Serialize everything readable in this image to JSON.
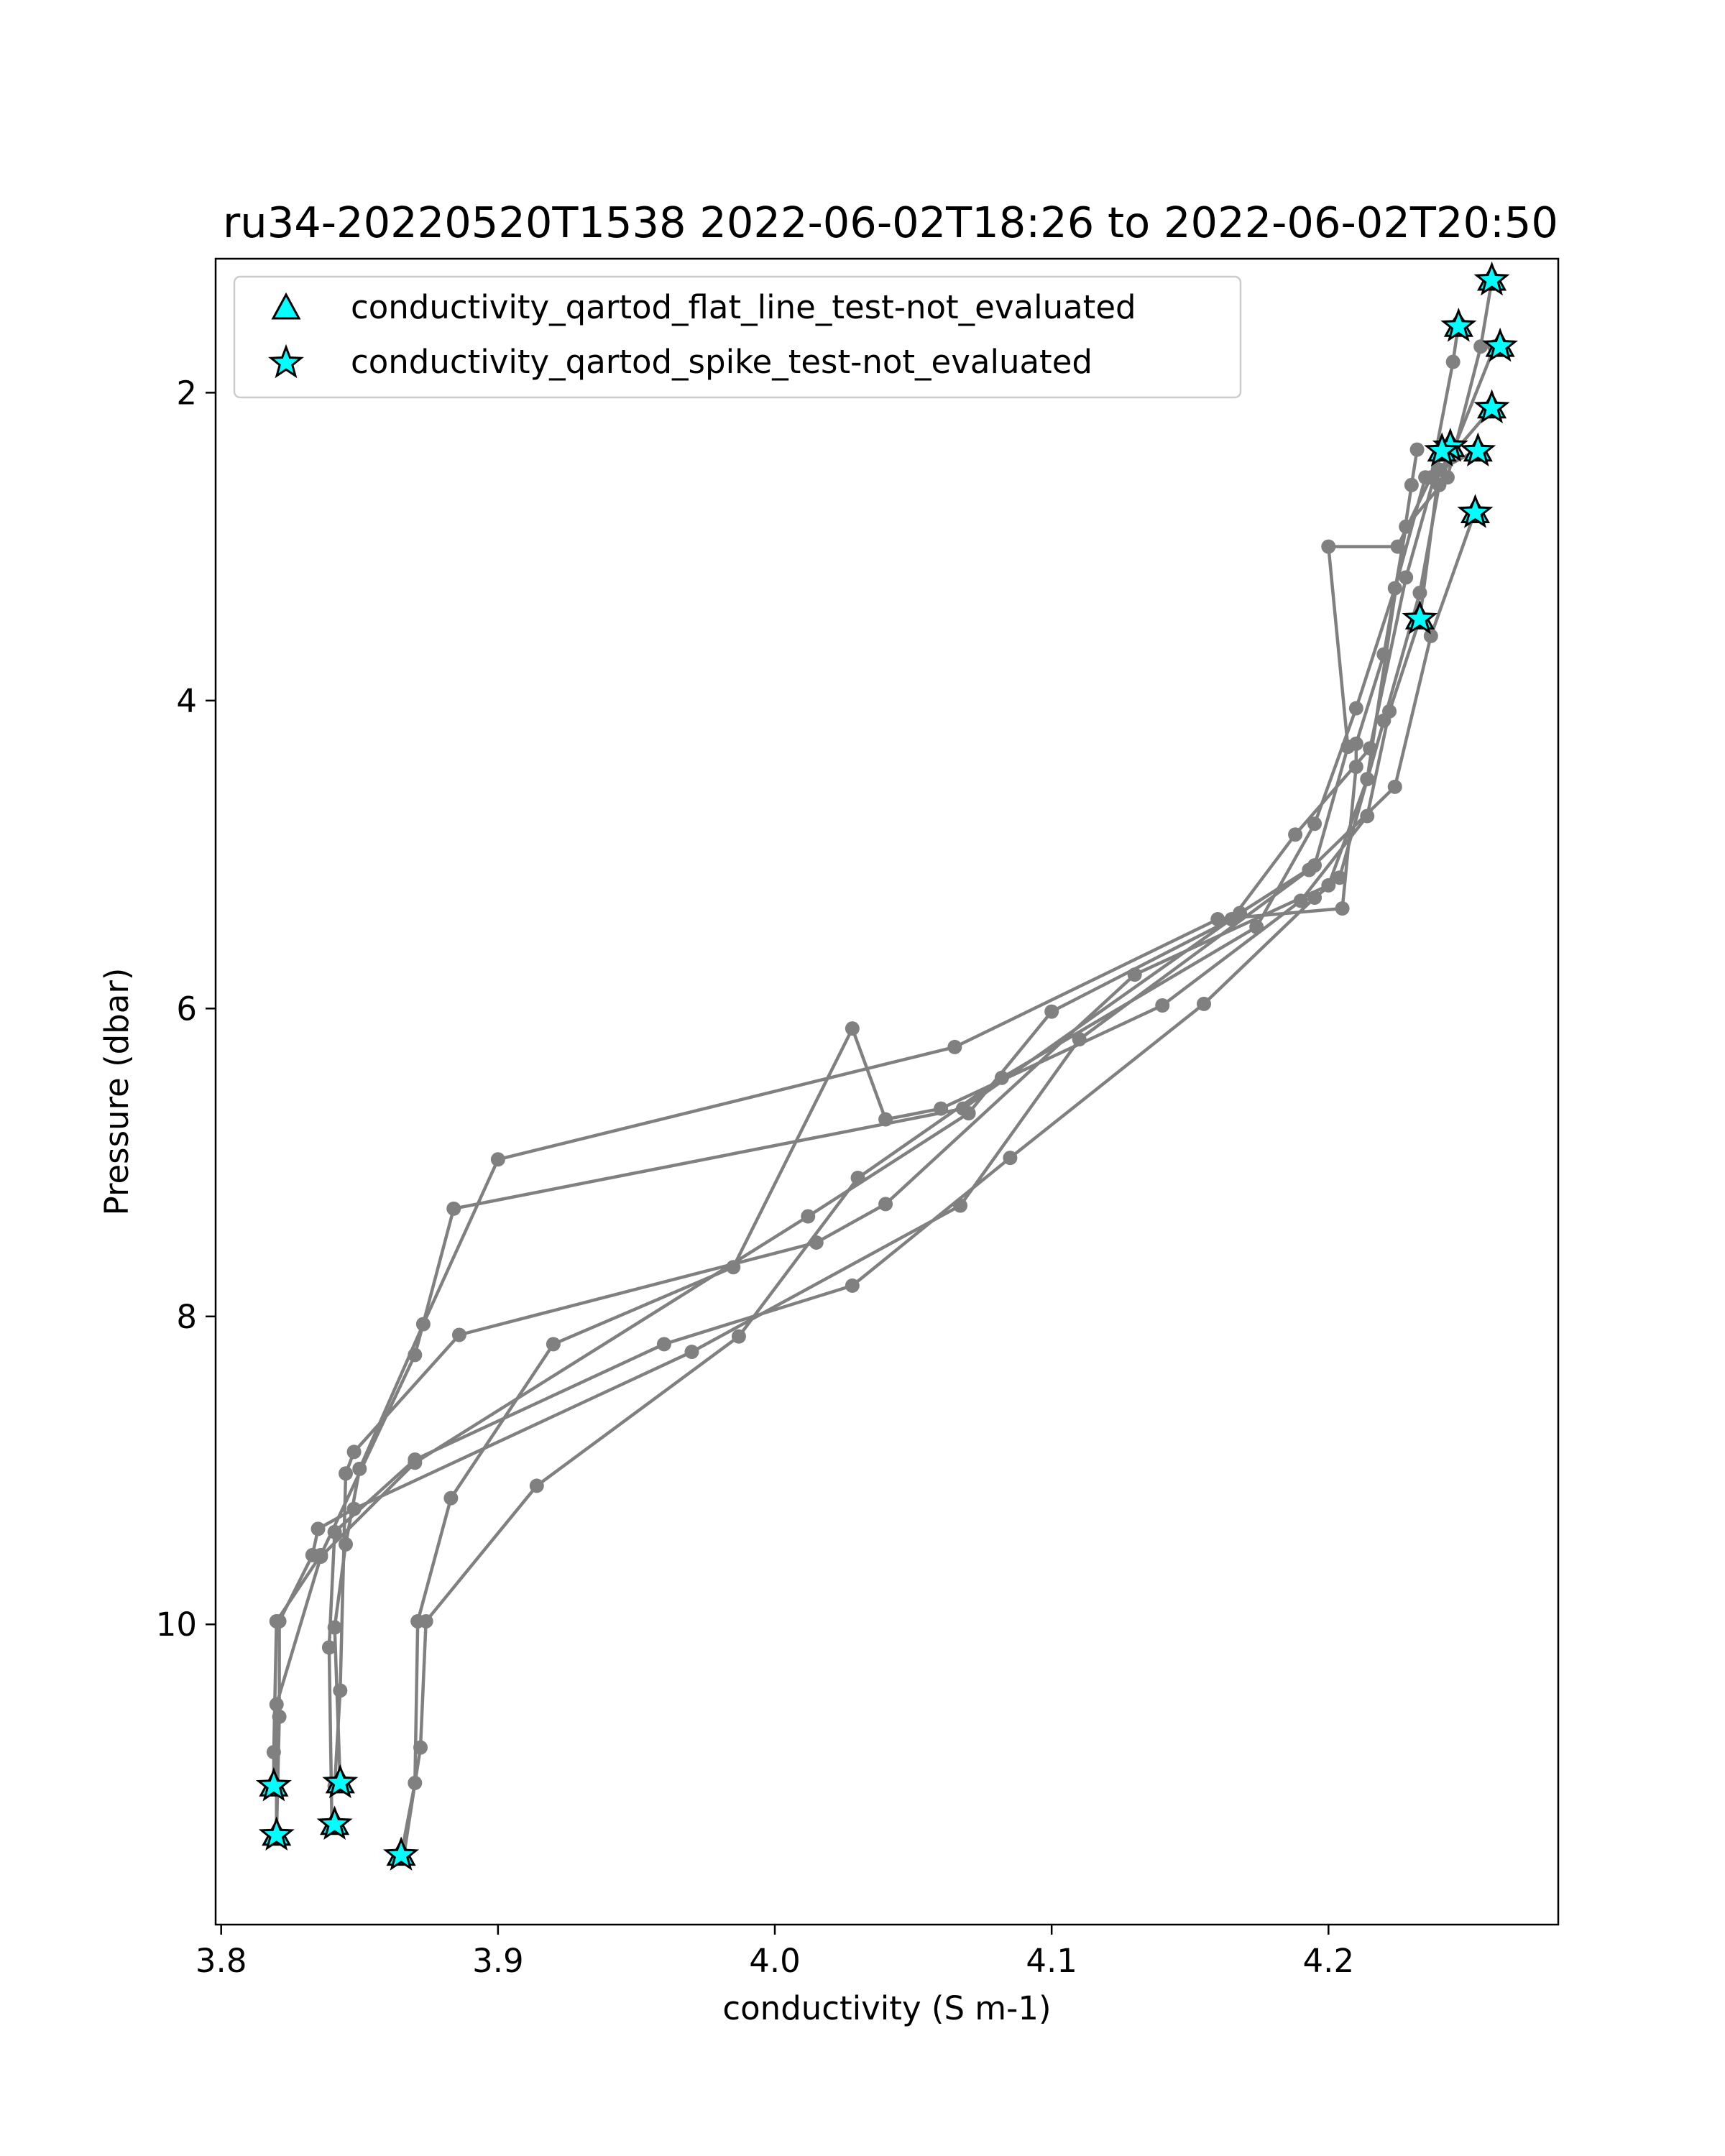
{
  "chart_data": {
    "type": "line",
    "title": "ru34-20220520T1538 2022-06-02T18:26 to 2022-06-02T20:50",
    "xlabel": "conductivity (S m-1)",
    "ylabel": "Pressure (dbar)",
    "xlim": [
      3.798,
      4.283
    ],
    "ylim": [
      11.95,
      1.13
    ],
    "y_inverted": true,
    "xticks": [
      3.8,
      3.9,
      4.0,
      4.1,
      4.2
    ],
    "xtick_labels": [
      "3.8",
      "3.9",
      "4.0",
      "4.1",
      "4.2"
    ],
    "yticks": [
      2,
      4,
      6,
      8,
      10
    ],
    "ytick_labels": [
      "2",
      "4",
      "6",
      "8",
      "10"
    ],
    "grid": false,
    "legend_position": "upper-left",
    "line_color": "#808080",
    "marker_color": "#00ffff",
    "legend": [
      {
        "label": "conductivity_qartod_flat_line_test-not_evaluated",
        "marker": "triangle"
      },
      {
        "label": "conductivity_qartod_spike_test-not_evaluated",
        "marker": "star"
      }
    ],
    "series": [
      {
        "values": [
          [
            4.259,
            1.27
          ],
          [
            4.255,
            1.7
          ],
          [
            4.243,
            2.55
          ],
          [
            4.228,
            2.87
          ],
          [
            4.22,
            3.7
          ],
          [
            4.21,
            4.28
          ],
          [
            4.21,
            4.43
          ],
          [
            4.205,
            5.35
          ],
          [
            4.16,
            5.42
          ],
          [
            4.065,
            6.25
          ],
          [
            3.9,
            6.98
          ],
          [
            3.873,
            8.05
          ],
          [
            3.85,
            8.99
          ],
          [
            3.845,
            9.48
          ],
          [
            3.841,
            10.02
          ],
          [
            3.843,
            11.03
          ]
        ]
      },
      {
        "values": [
          [
            4.247,
            1.55
          ],
          [
            4.245,
            1.8
          ],
          [
            4.237,
            2.55
          ],
          [
            4.225,
            3.0
          ],
          [
            4.2,
            3.0
          ],
          [
            4.207,
            4.3
          ],
          [
            4.195,
            5.07
          ],
          [
            4.168,
            5.38
          ],
          [
            4.068,
            6.65
          ],
          [
            3.884,
            7.3
          ],
          [
            3.87,
            8.25
          ],
          [
            3.836,
            9.55
          ],
          [
            3.82,
            9.98
          ],
          [
            3.819,
            10.83
          ],
          [
            3.819,
            11.05
          ]
        ]
      },
      {
        "values": [
          [
            4.26,
            1.7
          ],
          [
            4.24,
            2.6
          ],
          [
            4.233,
            3.3
          ],
          [
            4.22,
            4.13
          ],
          [
            4.204,
            5.15
          ],
          [
            4.195,
            5.28
          ],
          [
            4.155,
            5.97
          ],
          [
            4.085,
            6.97
          ],
          [
            4.028,
            7.8
          ],
          [
            3.96,
            8.18
          ],
          [
            3.87,
            8.93
          ],
          [
            3.841,
            9.4
          ],
          [
            3.839,
            10.15
          ],
          [
            3.84,
            11.3
          ]
        ]
      },
      {
        "values": [
          [
            4.259,
            2.1
          ],
          [
            4.24,
            2.5
          ],
          [
            4.233,
            3.47
          ],
          [
            4.222,
            4.07
          ],
          [
            4.214,
            4.75
          ],
          [
            4.19,
            5.3
          ],
          [
            4.14,
            5.98
          ],
          [
            4.06,
            6.65
          ],
          [
            4.04,
            6.72
          ],
          [
            4.028,
            6.13
          ],
          [
            3.985,
            7.68
          ],
          [
            3.92,
            8.18
          ],
          [
            3.883,
            9.18
          ],
          [
            3.871,
            9.98
          ],
          [
            3.87,
            11.03
          ],
          [
            3.865,
            11.5
          ]
        ]
      },
      {
        "values": [
          [
            4.254,
            2.37
          ],
          [
            4.235,
            2.55
          ],
          [
            4.224,
            3.27
          ],
          [
            4.21,
            4.05
          ],
          [
            4.195,
            4.8
          ],
          [
            4.174,
            5.47
          ],
          [
            4.082,
            6.45
          ],
          [
            4.03,
            7.1
          ],
          [
            3.987,
            8.13
          ],
          [
            3.914,
            9.1
          ],
          [
            3.874,
            9.98
          ],
          [
            3.872,
            10.8
          ],
          [
            3.866,
            11.5
          ]
        ]
      },
      {
        "values": [
          [
            4.253,
            2.77
          ],
          [
            4.237,
            3.58
          ],
          [
            4.224,
            4.56
          ],
          [
            4.193,
            5.1
          ],
          [
            4.11,
            6.2
          ],
          [
            4.067,
            7.28
          ],
          [
            3.97,
            8.23
          ],
          [
            3.848,
            9.25
          ],
          [
            3.835,
            9.38
          ],
          [
            3.833,
            9.55
          ],
          [
            3.821,
            9.98
          ],
          [
            3.821,
            10.6
          ],
          [
            3.82,
            11.37
          ]
        ]
      },
      {
        "values": [
          [
            4.232,
            2.37
          ],
          [
            4.23,
            2.6
          ],
          [
            4.214,
            4.51
          ],
          [
            4.2,
            5.2
          ],
          [
            4.13,
            5.78
          ],
          [
            4.04,
            7.27
          ],
          [
            4.015,
            7.52
          ],
          [
            3.886,
            8.12
          ],
          [
            3.848,
            8.88
          ],
          [
            3.845,
            9.02
          ],
          [
            3.843,
            10.43
          ],
          [
            3.841,
            11.05
          ]
        ]
      },
      {
        "values": [
          [
            4.241,
            2.37
          ],
          [
            4.228,
            3.2
          ],
          [
            4.215,
            4.31
          ],
          [
            4.188,
            4.87
          ],
          [
            4.165,
            5.42
          ],
          [
            4.1,
            6.02
          ],
          [
            4.07,
            6.68
          ],
          [
            4.012,
            7.35
          ],
          [
            3.87,
            8.95
          ],
          [
            3.836,
            9.56
          ],
          [
            3.82,
            10.52
          ],
          [
            3.82,
            11.37
          ]
        ]
      }
    ],
    "spike_test_points": [
      [
        4.259,
        1.27
      ],
      [
        4.247,
        1.57
      ],
      [
        4.262,
        1.7
      ],
      [
        4.259,
        2.1
      ],
      [
        4.244,
        2.35
      ],
      [
        4.241,
        2.38
      ],
      [
        4.254,
        2.38
      ],
      [
        4.253,
        2.78
      ],
      [
        4.233,
        3.47
      ],
      [
        3.843,
        11.03
      ],
      [
        3.819,
        11.05
      ],
      [
        3.841,
        11.3
      ],
      [
        3.82,
        11.37
      ],
      [
        3.865,
        11.5
      ]
    ],
    "flat_line_test_points": [
      [
        4.259,
        1.27
      ],
      [
        4.247,
        1.57
      ],
      [
        4.262,
        1.7
      ],
      [
        4.259,
        2.1
      ],
      [
        4.244,
        2.35
      ],
      [
        4.241,
        2.38
      ],
      [
        4.254,
        2.38
      ],
      [
        4.253,
        2.78
      ],
      [
        4.233,
        3.47
      ],
      [
        3.843,
        11.03
      ],
      [
        3.819,
        11.05
      ],
      [
        3.841,
        11.3
      ],
      [
        3.82,
        11.37
      ],
      [
        3.865,
        11.5
      ]
    ]
  }
}
